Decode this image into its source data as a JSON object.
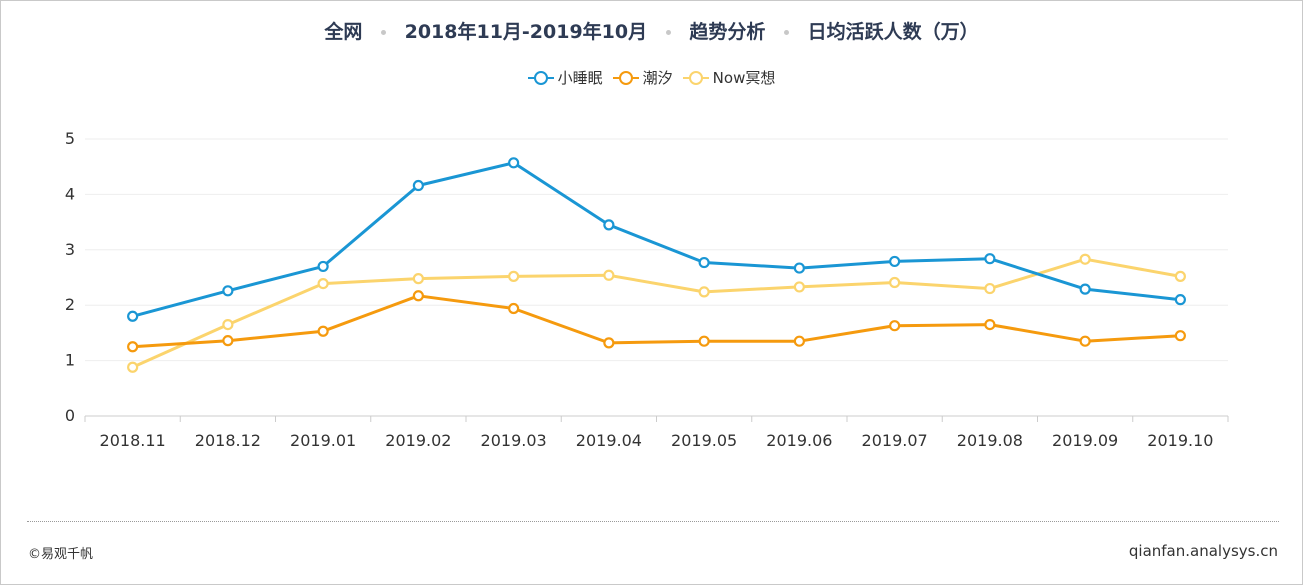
{
  "header": {
    "scope": "全网",
    "period": "2018年11月-2019年10月",
    "analysis": "趋势分析",
    "metric": "日均活跃人数（万）"
  },
  "footer": {
    "copyright": "©易观千帆",
    "site": "qianfan.analysys.cn"
  },
  "chart_data": {
    "type": "line",
    "title": "",
    "xlabel": "",
    "ylabel": "",
    "categories": [
      "2018.11",
      "2018.12",
      "2019.01",
      "2019.02",
      "2019.03",
      "2019.04",
      "2019.05",
      "2019.06",
      "2019.07",
      "2019.08",
      "2019.09",
      "2019.10"
    ],
    "ylim": [
      0,
      5
    ],
    "yticks": [
      0,
      1,
      2,
      3,
      4,
      5
    ],
    "grid": true,
    "legend_position": "top-center",
    "series": [
      {
        "name": "小睡眠",
        "color": "#1a96d4",
        "values": [
          1.8,
          2.26,
          2.7,
          4.16,
          4.57,
          3.45,
          2.77,
          2.67,
          2.79,
          2.84,
          2.29,
          2.1
        ]
      },
      {
        "name": "潮汐",
        "color": "#f59a0e",
        "values": [
          1.25,
          1.36,
          1.53,
          2.17,
          1.94,
          1.32,
          1.35,
          1.35,
          1.63,
          1.65,
          1.35,
          1.45
        ]
      },
      {
        "name": "Now冥想",
        "color": "#fbd46d",
        "values": [
          0.88,
          1.65,
          2.39,
          2.48,
          2.52,
          2.54,
          2.24,
          2.33,
          2.41,
          2.3,
          2.83,
          2.52
        ]
      }
    ]
  }
}
